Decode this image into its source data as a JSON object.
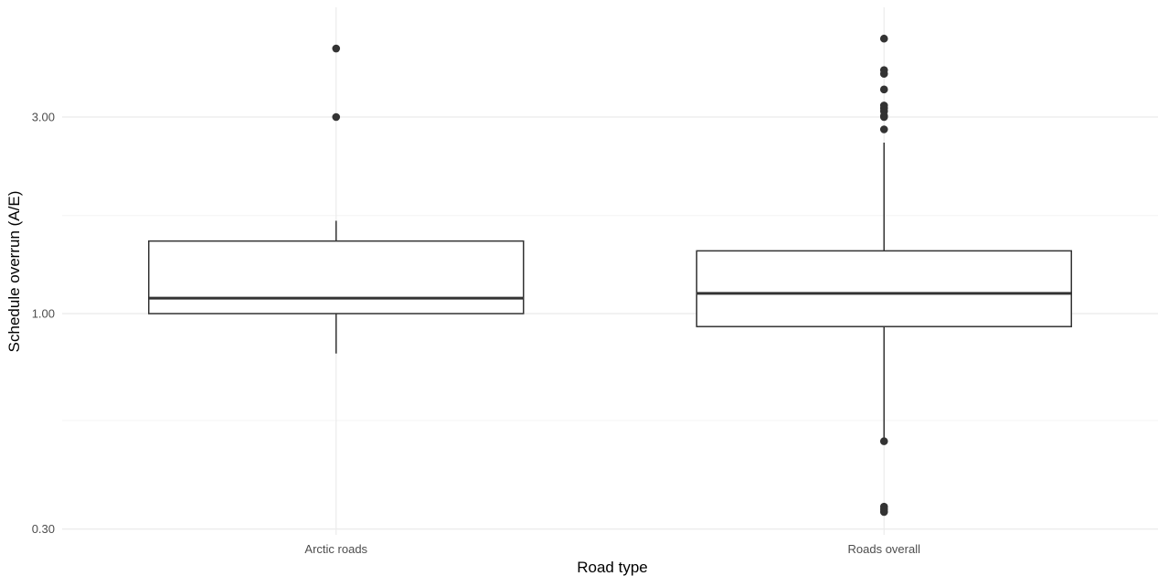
{
  "colors": {
    "background": "#ffffff",
    "grid_major": "#ebebeb",
    "grid_minor": "#f4f4f4",
    "box_stroke": "#333333",
    "outlier_fill": "#333333",
    "tick_text": "#4d4d4d",
    "axis_title_text": "#000000"
  },
  "chart_data": {
    "type": "boxplot",
    "xlabel": "Road type",
    "ylabel": "Schedule overrun (A/E)",
    "y_scale": "log10",
    "ylim": [
      0.29,
      5.5
    ],
    "y_ticks": [
      {
        "value": 0.3,
        "label": "0.30"
      },
      {
        "value": 1.0,
        "label": "1.00"
      },
      {
        "value": 3.0,
        "label": "3.00"
      }
    ],
    "y_minor_ticks": [
      0.55,
      1.73
    ],
    "grid": true,
    "legend": "none",
    "categories": [
      "Arctic roads",
      "Roads overall"
    ],
    "boxes": [
      {
        "category": "Arctic roads",
        "whisker_low": 0.8,
        "q1": 1.0,
        "median": 1.09,
        "q3": 1.5,
        "whisker_high": 1.68,
        "outliers": [
          3.0,
          4.4
        ]
      },
      {
        "category": "Roads overall",
        "whisker_low": 0.49,
        "q1": 0.93,
        "median": 1.12,
        "q3": 1.42,
        "whisker_high": 2.6,
        "outliers": [
          0.49,
          0.33,
          0.335,
          0.34,
          2.8,
          3.0,
          3.02,
          3.1,
          3.15,
          3.2,
          3.5,
          3.82,
          3.9,
          4.65
        ]
      }
    ]
  }
}
